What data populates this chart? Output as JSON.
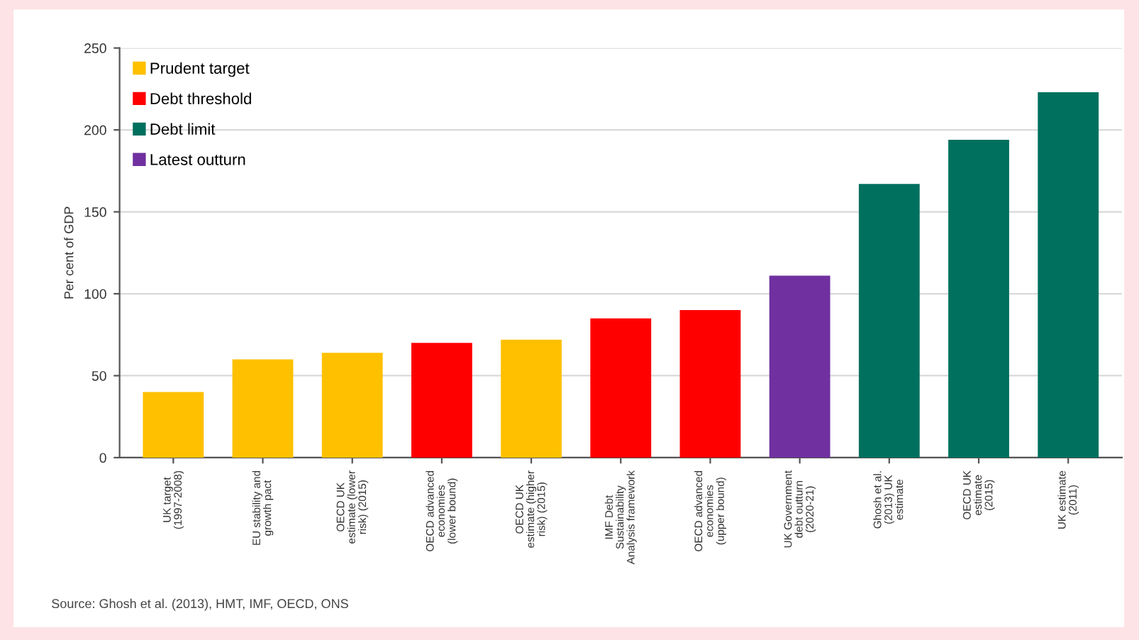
{
  "chart_data": {
    "type": "bar",
    "ylabel": "Per cent of GDP",
    "categories": [
      "UK target\n(1997-2008)",
      "EU stability and\ngrowth pact",
      "OECD UK\nestimate (lower\nrisk) (2015)",
      "OECD advanced\neconomies\n(lower bound)",
      "OECD UK\nestimate (higher\nrisk) (2015)",
      "IMF Debt\nSustainability\nAnalysis framework",
      "OECD advanced\neconomies\n(upper bound)",
      "UK Government\ndebt outturn\n(2020-21)",
      "Ghosh et al.\n(2013) UK\nestimate",
      "OECD UK\nestimate\n(2015)",
      "UK estimate\n(2011)"
    ],
    "series": [
      {
        "name": "Prudent target",
        "color": "#ffc000",
        "values": [
          40,
          60,
          64,
          null,
          72,
          null,
          null,
          null,
          null,
          null,
          null
        ]
      },
      {
        "name": "Debt threshold",
        "color": "#ff0000",
        "values": [
          null,
          null,
          null,
          70,
          null,
          85,
          90,
          null,
          null,
          null,
          null
        ]
      },
      {
        "name": "Debt limit",
        "color": "#00705e",
        "values": [
          null,
          null,
          null,
          null,
          null,
          null,
          null,
          null,
          167,
          194,
          223
        ]
      },
      {
        "name": "Latest outturn",
        "color": "#7030a0",
        "values": [
          null,
          null,
          null,
          null,
          null,
          null,
          null,
          111,
          null,
          null,
          null
        ]
      }
    ],
    "ylim": [
      0,
      250
    ],
    "yticks": [
      0,
      50,
      100,
      150,
      200,
      250
    ],
    "grid": "y",
    "legend": "top left",
    "annotations": [
      "Source: Ghosh et al. (2013), HMT, IMF, OECD, ONS"
    ]
  }
}
